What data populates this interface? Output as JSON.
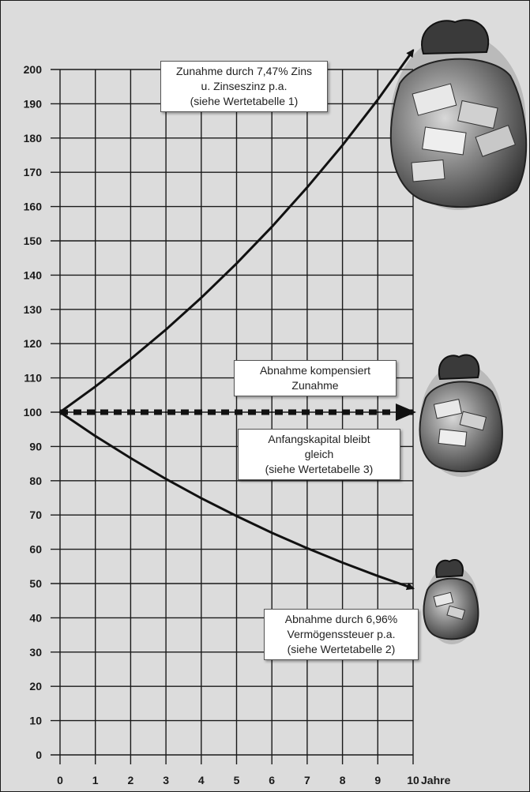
{
  "chart_data": {
    "type": "line",
    "xlabel": "Jahre",
    "ylabel": "",
    "xlim": [
      0,
      10
    ],
    "ylim": [
      0,
      200
    ],
    "x_ticks": [
      0,
      1,
      2,
      3,
      4,
      5,
      6,
      7,
      8,
      9,
      10
    ],
    "y_ticks": [
      0,
      10,
      20,
      30,
      40,
      50,
      60,
      70,
      80,
      90,
      100,
      110,
      120,
      130,
      140,
      150,
      160,
      170,
      180,
      190,
      200
    ],
    "grid": true,
    "series": [
      {
        "style": "solid",
        "color": "#111111",
        "x": [
          0,
          1,
          2,
          3,
          4,
          5,
          6,
          7,
          8,
          9,
          10
        ],
        "values": [
          100,
          107.47,
          115.5,
          124.1,
          133.4,
          143.4,
          154.1,
          165.6,
          177.9,
          191.2,
          205.6
        ]
      },
      {
        "style": "dashed",
        "color": "#111111",
        "x": [
          0,
          1,
          2,
          3,
          4,
          5,
          6,
          7,
          8,
          9,
          10
        ],
        "values": [
          100,
          100,
          100,
          100,
          100,
          100,
          100,
          100,
          100,
          100,
          100
        ]
      },
      {
        "style": "solid",
        "color": "#111111",
        "x": [
          0,
          1,
          2,
          3,
          4,
          5,
          6,
          7,
          8,
          9,
          10
        ],
        "values": [
          100,
          93.04,
          86.6,
          80.5,
          74.9,
          69.7,
          64.8,
          60.3,
          56.1,
          52.2,
          48.6
        ]
      }
    ],
    "annotations": [
      {
        "id": "growth",
        "lines": [
          "Zunahme durch 7,47% Zins",
          "u. Zinseszinz p.a.",
          "(siehe Wertetabelle 1)"
        ]
      },
      {
        "id": "compensate",
        "lines": [
          "Abnahme kompensiert",
          "Zunahme"
        ]
      },
      {
        "id": "constant",
        "lines": [
          "Anfangskapital bleibt",
          "gleich",
          "(siehe Wertetabelle 3)"
        ]
      },
      {
        "id": "decrease",
        "lines": [
          "Abnahme durch 6,96%",
          "Vermögenssteuer p.a.",
          "(siehe Wertetabelle 2)"
        ]
      }
    ],
    "illustrations": [
      "money-bag-large-icon",
      "money-bag-medium-icon",
      "money-bag-small-icon"
    ],
    "colors": {
      "background": "#dcdcdc",
      "grid": "#1a1a1a",
      "line": "#111111"
    }
  }
}
